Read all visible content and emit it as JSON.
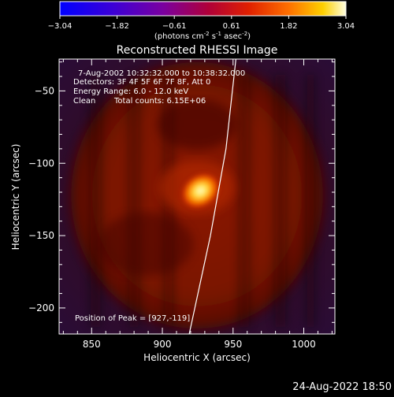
{
  "colorbar": {
    "ticks": [
      "-3.04",
      "-1.82",
      "-0.61",
      "0.61",
      "1.82",
      "3.04"
    ],
    "unit_base": "(photons cm",
    "unit_sup1": "-2",
    "unit_mid1": " s",
    "unit_sup2": "-1",
    "unit_mid2": " asec",
    "unit_sup3": "-2",
    "unit_end": ")"
  },
  "info": {
    "time": "7-Aug-2002 10:32:32.000 to 10:38:32.000",
    "detectors": "Detectors: 3F 4F 5F 6F 7F 8F, Att 0",
    "energy": "Energy Range: 6.0 - 12.0 keV",
    "clean": "Clean",
    "total_counts": "Total counts: 6.15E+06",
    "peak": "Position of Peak = [927,-119]"
  },
  "timestamp": "24-Aug-2022 18:50",
  "chart_data": {
    "type": "heatmap",
    "title": "Reconstructed RHESSI Image",
    "xlabel": "Heliocentric X (arcsec)",
    "ylabel": "Heliocentric Y (arcsec)",
    "xlim": [
      827,
      1022
    ],
    "ylim": [
      -218,
      -28
    ],
    "xticks": [
      850,
      900,
      950,
      1000
    ],
    "yticks": [
      -50,
      -100,
      -150,
      -200
    ],
    "colorbar_range": [
      -3.04,
      3.04
    ],
    "peak": {
      "x": 927,
      "y": -119
    },
    "limb_curve": [
      [
        919,
        -218
      ],
      [
        934,
        -150
      ],
      [
        945,
        -90
      ],
      [
        952,
        -28
      ]
    ]
  }
}
